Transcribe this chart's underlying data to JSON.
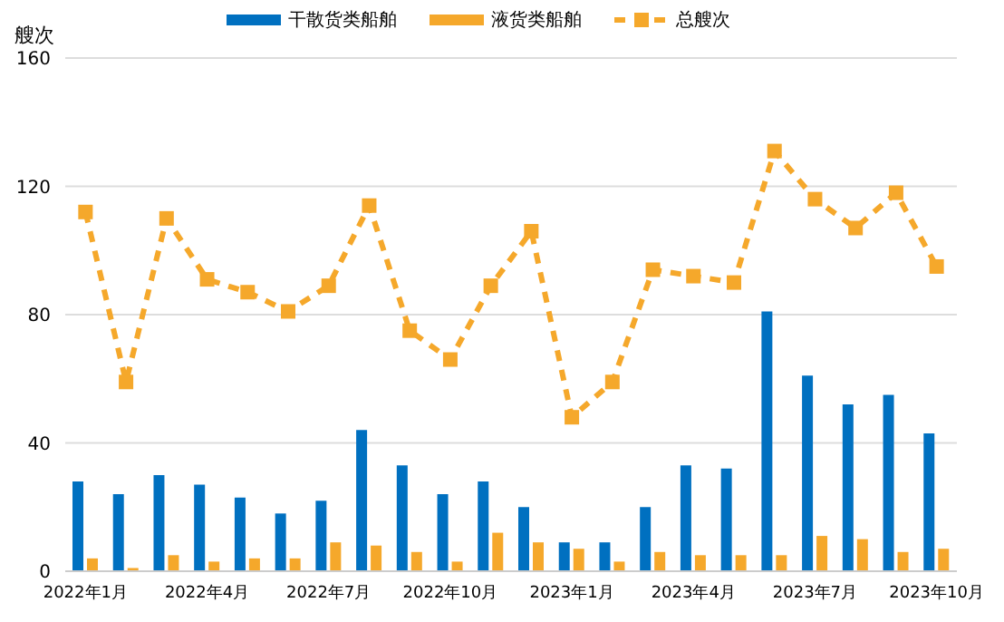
{
  "chart_data": {
    "type": "bar",
    "ylabel": "艘次",
    "categories": [
      "2022年1月",
      null,
      null,
      "2022年4月",
      null,
      null,
      "2022年7月",
      null,
      null,
      "2022年10月",
      null,
      null,
      "2023年1月",
      null,
      null,
      "2023年4月",
      null,
      null,
      "2023年7月",
      null,
      null,
      "2023年10月"
    ],
    "series": [
      {
        "name": "干散货类船舶",
        "color": "#0070c0",
        "values": [
          28,
          24,
          30,
          27,
          23,
          18,
          22,
          44,
          33,
          24,
          28,
          20,
          9,
          9,
          20,
          33,
          32,
          81,
          61,
          52,
          55,
          43
        ]
      },
      {
        "name": "液货类船舶",
        "color": "#f5a82b",
        "values": [
          4,
          1,
          5,
          3,
          4,
          4,
          9,
          8,
          6,
          3,
          12,
          9,
          7,
          3,
          6,
          5,
          5,
          5,
          11,
          10,
          6,
          7
        ]
      },
      {
        "name": "总艘次",
        "type": "line",
        "color": "#f5a82b",
        "line_style": "dashed",
        "marker": "square",
        "values": [
          112,
          59,
          110,
          91,
          87,
          81,
          89,
          114,
          75,
          66,
          89,
          106,
          48,
          59,
          94,
          92,
          90,
          131,
          116,
          107,
          118,
          95
        ]
      }
    ],
    "ylim": [
      0,
      160
    ],
    "yticks": [
      0,
      40,
      80,
      120,
      160
    ],
    "grid": "y",
    "legend": "top"
  }
}
